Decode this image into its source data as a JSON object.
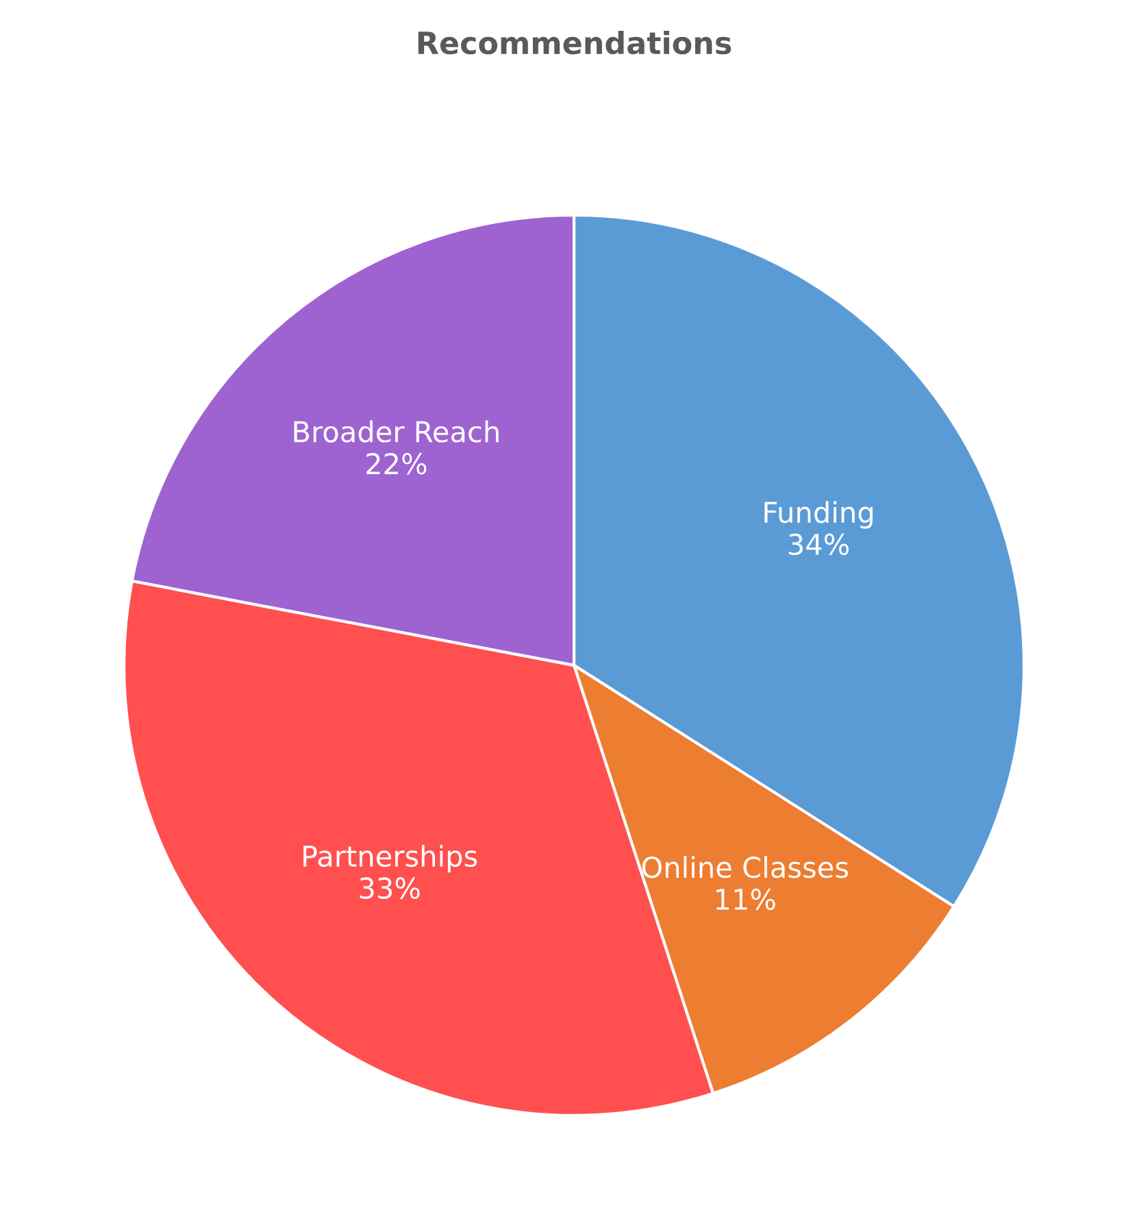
{
  "chart_data": {
    "type": "pie",
    "title": "Recommendations",
    "categories": [
      "Funding",
      "Online Classes",
      "Partnerships",
      "Broader Reach"
    ],
    "values": [
      34,
      11,
      33,
      22
    ],
    "colors": [
      "#5b9bd5",
      "#ed7d31",
      "#ff4f4f",
      "#9e63d1"
    ],
    "value_labels": [
      "34%",
      "11%",
      "33%",
      "22%"
    ]
  }
}
